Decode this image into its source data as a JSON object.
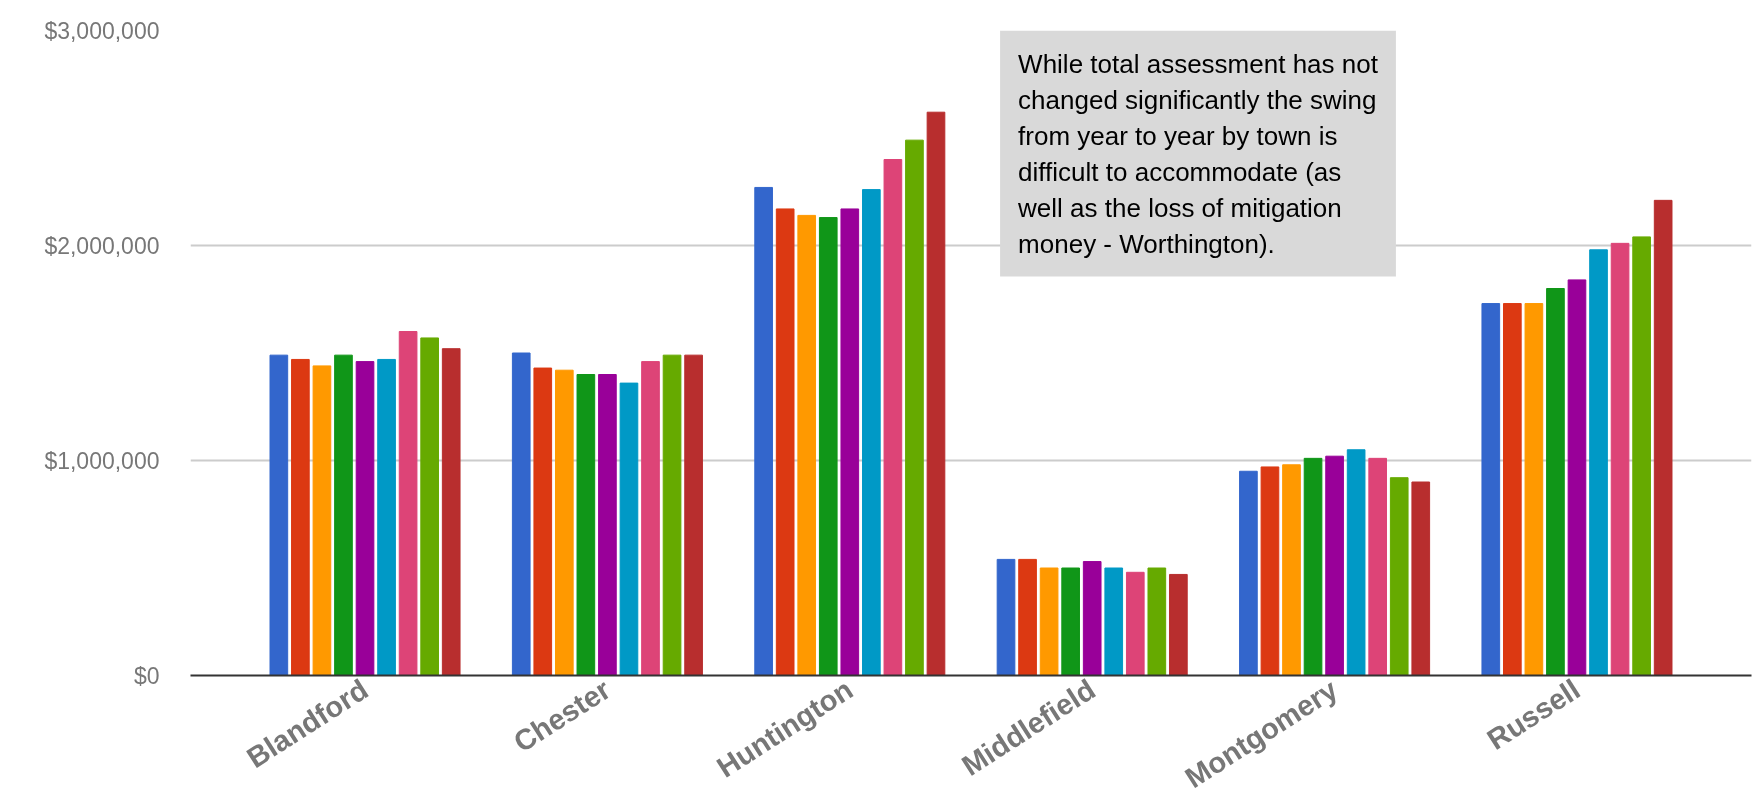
{
  "chart_data": {
    "type": "bar",
    "categories": [
      "Blandford",
      "Chester",
      "Huntington",
      "Middlefield",
      "Montgomery",
      "Russell"
    ],
    "series": [
      {
        "color": "#3366cc",
        "values": [
          1490000,
          1500000,
          2270000,
          540000,
          950000,
          1730000
        ]
      },
      {
        "color": "#dc3912",
        "values": [
          1470000,
          1430000,
          2170000,
          540000,
          970000,
          1730000
        ]
      },
      {
        "color": "#ff9900",
        "values": [
          1440000,
          1420000,
          2140000,
          500000,
          980000,
          1730000
        ]
      },
      {
        "color": "#109618",
        "values": [
          1490000,
          1400000,
          2130000,
          500000,
          1010000,
          1800000
        ]
      },
      {
        "color": "#990099",
        "values": [
          1460000,
          1400000,
          2170000,
          530000,
          1020000,
          1840000
        ]
      },
      {
        "color": "#0099c6",
        "values": [
          1470000,
          1360000,
          2260000,
          500000,
          1050000,
          1980000
        ]
      },
      {
        "color": "#dd4477",
        "values": [
          1600000,
          1460000,
          2400000,
          480000,
          1010000,
          2010000
        ]
      },
      {
        "color": "#66aa00",
        "values": [
          1570000,
          1490000,
          2490000,
          500000,
          920000,
          2040000
        ]
      },
      {
        "color": "#b82e2e",
        "values": [
          1520000,
          1490000,
          2620000,
          470000,
          900000,
          2210000
        ]
      }
    ],
    "ylim": [
      0,
      3000000
    ],
    "yticks": [
      {
        "value": 0,
        "label": "$0"
      },
      {
        "value": 1000000,
        "label": "$1,000,000"
      },
      {
        "value": 2000000,
        "label": "$2,000,000"
      },
      {
        "value": 3000000,
        "label": "$3,000,000"
      }
    ],
    "grid": "y",
    "annotations": [
      "While total assessment has not changed significantly the swing from year to year by town is difficult to accommodate (as well as the loss of mitigation money - Worthington)."
    ]
  }
}
